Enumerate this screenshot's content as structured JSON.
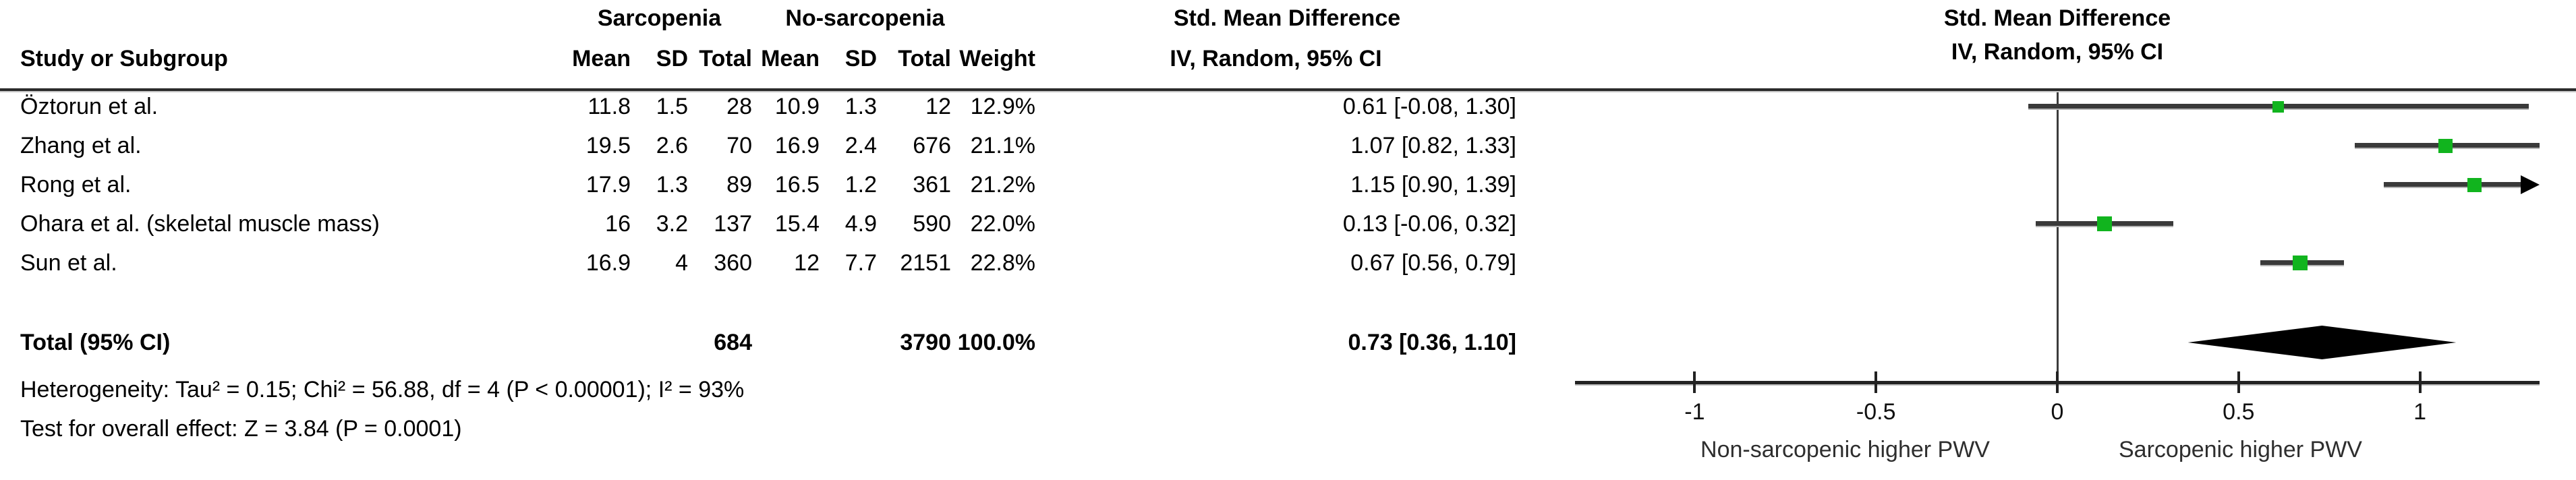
{
  "table": {
    "header": {
      "study_col": "Study or Subgroup",
      "group1": "Sarcopenia",
      "group2": "No-sarcopenia",
      "mean": "Mean",
      "sd": "SD",
      "total": "Total",
      "weight": "Weight",
      "effect_title": "Std. Mean Difference",
      "effect_sub": "IV, Random, 95% CI",
      "plot_title": "Std. Mean Difference",
      "plot_sub": "IV, Random, 95% CI"
    },
    "rows": [
      {
        "study": "Öztorun et al.",
        "mean1": "11.8",
        "sd1": "1.5",
        "total1": "28",
        "mean2": "10.9",
        "sd2": "1.3",
        "total2": "12",
        "weight": "12.9%",
        "ci": "0.61 [-0.08, 1.30]"
      },
      {
        "study": "Zhang et al.",
        "mean1": "19.5",
        "sd1": "2.6",
        "total1": "70",
        "mean2": "16.9",
        "sd2": "2.4",
        "total2": "676",
        "weight": "21.1%",
        "ci": "1.07 [0.82, 1.33]"
      },
      {
        "study": "Rong et al.",
        "mean1": "17.9",
        "sd1": "1.3",
        "total1": "89",
        "mean2": "16.5",
        "sd2": "1.2",
        "total2": "361",
        "weight": "21.2%",
        "ci": "1.15 [0.90, 1.39]"
      },
      {
        "study": "Ohara et al. (skeletal muscle mass)",
        "mean1": "16",
        "sd1": "3.2",
        "total1": "137",
        "mean2": "15.4",
        "sd2": "4.9",
        "total2": "590",
        "weight": "22.0%",
        "ci": "0.13 [-0.06, 0.32]"
      },
      {
        "study": "Sun et al.",
        "mean1": "16.9",
        "sd1": "4",
        "total1": "360",
        "mean2": "12",
        "sd2": "7.7",
        "total2": "2151",
        "weight": "22.8%",
        "ci": "0.67 [0.56, 0.79]"
      }
    ],
    "total_row": {
      "label": "Total (95% CI)",
      "total1": "684",
      "total2": "3790",
      "weight": "100.0%",
      "ci": "0.73 [0.36, 1.10]"
    },
    "footer": {
      "heterogeneity": "Heterogeneity: Tau² = 0.15; Chi² = 56.88, df = 4 (P < 0.00001); I² = 93%",
      "overall_effect": "Test for overall effect: Z = 3.84 (P = 0.0001)"
    }
  },
  "chart_data": {
    "type": "forest",
    "title": "Std. Mean Difference",
    "subtitle": "IV, Random, 95% CI",
    "x_axis": {
      "min": -1.33,
      "max": 1.33,
      "ticks": [
        -1,
        -0.5,
        0,
        0.5,
        1
      ],
      "tick_labels": [
        "-1",
        "-0.5",
        "0",
        "0.5",
        "1"
      ]
    },
    "direction_labels": {
      "left": "Non-sarcopenic higher PWV",
      "right": "Sarcopenic higher PWV"
    },
    "studies": [
      {
        "name": "Öztorun et al.",
        "smd": 0.61,
        "ci_low": -0.08,
        "ci_high": 1.3,
        "weight_pct": 12.9
      },
      {
        "name": "Zhang et al.",
        "smd": 1.07,
        "ci_low": 0.82,
        "ci_high": 1.33,
        "weight_pct": 21.1
      },
      {
        "name": "Rong et al.",
        "smd": 1.15,
        "ci_low": 0.9,
        "ci_high": 1.39,
        "weight_pct": 21.2
      },
      {
        "name": "Ohara et al. (skeletal muscle mass)",
        "smd": 0.13,
        "ci_low": -0.06,
        "ci_high": 0.32,
        "weight_pct": 22.0
      },
      {
        "name": "Sun et al.",
        "smd": 0.67,
        "ci_low": 0.56,
        "ci_high": 0.79,
        "weight_pct": 22.8
      }
    ],
    "total": {
      "label": "Total (95% CI)",
      "smd": 0.73,
      "ci_low": 0.36,
      "ci_high": 1.1
    },
    "marker_color": "#11b41e",
    "ci_line_color": "#3a3a3a",
    "diamond_color": "#000000"
  }
}
